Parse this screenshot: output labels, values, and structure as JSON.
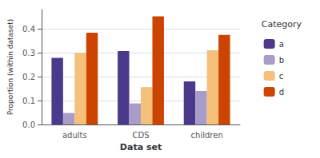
{
  "chart_data": {
    "type": "bar",
    "categories": [
      "adults",
      "CDS",
      "children"
    ],
    "series": [
      {
        "name": "a",
        "color": "#4B3A8C",
        "values": [
          0.278,
          0.307,
          0.18
        ]
      },
      {
        "name": "b",
        "color": "#A89CC8",
        "values": [
          0.048,
          0.088,
          0.14
        ]
      },
      {
        "name": "c",
        "color": "#F5C07A",
        "values": [
          0.3,
          0.156,
          0.31
        ]
      },
      {
        "name": "d",
        "color": "#CC4400",
        "values": [
          0.383,
          0.452,
          0.374
        ]
      }
    ],
    "xlabel": "Data set",
    "ylabel": "Proportion (within dataset)",
    "legend_title": "Category",
    "ylim": [
      0.0,
      0.48
    ],
    "yticks": [
      {
        "value": 0.0,
        "label": "0.0"
      },
      0.1,
      0.2,
      0.3,
      0.4
    ],
    "grid": true,
    "legend": "right"
  }
}
